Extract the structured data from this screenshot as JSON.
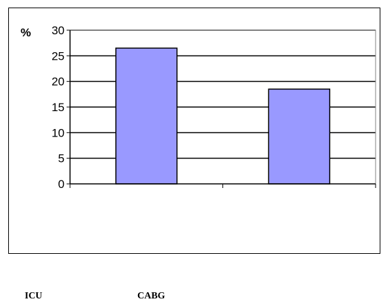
{
  "chart_data": {
    "type": "bar",
    "categories": [
      "",
      ""
    ],
    "values": [
      26.5,
      18.5
    ],
    "title": "",
    "xlabel": "",
    "ylabel": "%",
    "ylim": [
      0,
      30
    ],
    "yticks": [
      0,
      5,
      10,
      15,
      20,
      25,
      30
    ],
    "grid": true,
    "legend": "none",
    "colors": {
      "bar": "#9999ff",
      "grid": "#000000",
      "axis": "#808080"
    }
  },
  "caption_labels": {
    "left": "ICU",
    "right": "CABG"
  }
}
